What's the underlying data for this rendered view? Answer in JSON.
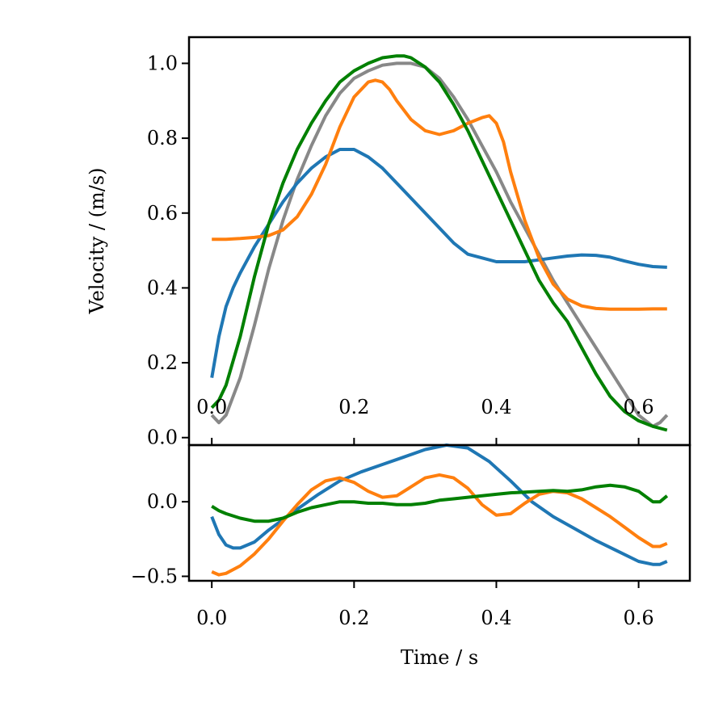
{
  "chart_data": [
    {
      "type": "line",
      "panel": "top",
      "title": "",
      "xlabel": "",
      "ylabel": "Velocity / (m/s)",
      "xlim": [
        -0.032,
        0.672
      ],
      "ylim": [
        -0.02,
        1.07
      ],
      "xticks": [
        0.0,
        0.2,
        0.4,
        0.6
      ],
      "xtick_labels": [
        "0.0",
        "0.2",
        "0.4",
        "0.6"
      ],
      "yticks": [
        0.0,
        0.2,
        0.4,
        0.6,
        0.8,
        1.0
      ],
      "ytick_labels": [
        "0.0",
        "0.2",
        "0.4",
        "0.6",
        "0.8",
        "1.0"
      ],
      "series": [
        {
          "name": "gray",
          "color": "#888888",
          "x": [
            0.0,
            0.01,
            0.02,
            0.04,
            0.06,
            0.08,
            0.1,
            0.12,
            0.14,
            0.16,
            0.18,
            0.2,
            0.22,
            0.24,
            0.26,
            0.28,
            0.3,
            0.32,
            0.34,
            0.36,
            0.38,
            0.4,
            0.42,
            0.44,
            0.46,
            0.48,
            0.5,
            0.52,
            0.54,
            0.56,
            0.58,
            0.6,
            0.62,
            0.63,
            0.64
          ],
          "y": [
            0.06,
            0.04,
            0.06,
            0.16,
            0.3,
            0.45,
            0.58,
            0.69,
            0.78,
            0.86,
            0.92,
            0.96,
            0.98,
            0.995,
            1.0,
            1.0,
            0.99,
            0.96,
            0.91,
            0.85,
            0.78,
            0.71,
            0.63,
            0.56,
            0.49,
            0.42,
            0.36,
            0.3,
            0.24,
            0.18,
            0.12,
            0.06,
            0.03,
            0.04,
            0.06
          ]
        },
        {
          "name": "blue",
          "color": "#1f77b4",
          "x": [
            0.0,
            0.01,
            0.02,
            0.03,
            0.04,
            0.06,
            0.08,
            0.1,
            0.12,
            0.14,
            0.16,
            0.18,
            0.2,
            0.22,
            0.24,
            0.26,
            0.28,
            0.3,
            0.32,
            0.34,
            0.36,
            0.38,
            0.4,
            0.42,
            0.44,
            0.46,
            0.48,
            0.5,
            0.52,
            0.54,
            0.56,
            0.58,
            0.6,
            0.62,
            0.64
          ],
          "y": [
            0.16,
            0.27,
            0.35,
            0.4,
            0.44,
            0.51,
            0.57,
            0.63,
            0.68,
            0.72,
            0.75,
            0.77,
            0.77,
            0.75,
            0.72,
            0.68,
            0.64,
            0.6,
            0.56,
            0.52,
            0.49,
            0.48,
            0.47,
            0.47,
            0.47,
            0.475,
            0.48,
            0.485,
            0.488,
            0.487,
            0.482,
            0.472,
            0.463,
            0.457,
            0.455
          ]
        },
        {
          "name": "orange",
          "color": "#ff7f0e",
          "x": [
            0.0,
            0.02,
            0.04,
            0.06,
            0.08,
            0.1,
            0.12,
            0.14,
            0.16,
            0.18,
            0.2,
            0.22,
            0.23,
            0.24,
            0.25,
            0.26,
            0.28,
            0.3,
            0.32,
            0.34,
            0.36,
            0.38,
            0.39,
            0.4,
            0.41,
            0.42,
            0.44,
            0.46,
            0.48,
            0.5,
            0.52,
            0.54,
            0.56,
            0.58,
            0.6,
            0.62,
            0.64
          ],
          "y": [
            0.53,
            0.53,
            0.532,
            0.535,
            0.54,
            0.555,
            0.59,
            0.65,
            0.73,
            0.83,
            0.91,
            0.95,
            0.955,
            0.95,
            0.93,
            0.9,
            0.85,
            0.82,
            0.81,
            0.82,
            0.84,
            0.855,
            0.86,
            0.84,
            0.79,
            0.71,
            0.58,
            0.48,
            0.41,
            0.37,
            0.352,
            0.345,
            0.343,
            0.343,
            0.343,
            0.344,
            0.344
          ]
        },
        {
          "name": "green",
          "color": "#008000",
          "x": [
            0.0,
            0.01,
            0.02,
            0.04,
            0.06,
            0.08,
            0.1,
            0.12,
            0.14,
            0.16,
            0.18,
            0.2,
            0.22,
            0.24,
            0.26,
            0.27,
            0.28,
            0.3,
            0.32,
            0.34,
            0.36,
            0.38,
            0.4,
            0.42,
            0.44,
            0.46,
            0.48,
            0.5,
            0.52,
            0.54,
            0.56,
            0.58,
            0.6,
            0.62,
            0.64
          ],
          "y": [
            0.08,
            0.1,
            0.14,
            0.27,
            0.43,
            0.57,
            0.68,
            0.77,
            0.84,
            0.9,
            0.95,
            0.98,
            1.0,
            1.015,
            1.02,
            1.02,
            1.015,
            0.99,
            0.95,
            0.89,
            0.82,
            0.74,
            0.66,
            0.58,
            0.5,
            0.42,
            0.36,
            0.31,
            0.24,
            0.17,
            0.11,
            0.07,
            0.045,
            0.03,
            0.02
          ]
        }
      ]
    },
    {
      "type": "line",
      "panel": "bottom",
      "title": "",
      "xlabel": "Time / s",
      "ylabel": "",
      "xlim": [
        -0.032,
        0.672
      ],
      "ylim": [
        -0.53,
        0.38
      ],
      "xticks": [
        0.0,
        0.2,
        0.4,
        0.6
      ],
      "xtick_labels": [
        "0.0",
        "0.2",
        "0.4",
        "0.6"
      ],
      "yticks": [
        -0.5,
        0.0
      ],
      "ytick_labels": [
        "−0.5",
        "0.0"
      ],
      "series": [
        {
          "name": "blue",
          "color": "#1f77b4",
          "x": [
            0.0,
            0.01,
            0.02,
            0.03,
            0.04,
            0.06,
            0.08,
            0.1,
            0.12,
            0.15,
            0.18,
            0.21,
            0.24,
            0.27,
            0.3,
            0.33,
            0.36,
            0.39,
            0.42,
            0.45,
            0.48,
            0.51,
            0.54,
            0.57,
            0.6,
            0.62,
            0.63,
            0.64
          ],
          "y": [
            -0.1,
            -0.22,
            -0.29,
            -0.31,
            -0.31,
            -0.27,
            -0.19,
            -0.12,
            -0.05,
            0.05,
            0.14,
            0.2,
            0.25,
            0.3,
            0.35,
            0.38,
            0.36,
            0.27,
            0.14,
            0.0,
            -0.1,
            -0.18,
            -0.26,
            -0.33,
            -0.4,
            -0.42,
            -0.42,
            -0.4
          ]
        },
        {
          "name": "orange",
          "color": "#ff7f0e",
          "x": [
            0.0,
            0.01,
            0.02,
            0.04,
            0.06,
            0.08,
            0.1,
            0.12,
            0.14,
            0.16,
            0.18,
            0.2,
            0.22,
            0.24,
            0.26,
            0.28,
            0.3,
            0.32,
            0.34,
            0.36,
            0.38,
            0.4,
            0.42,
            0.44,
            0.46,
            0.48,
            0.5,
            0.52,
            0.54,
            0.56,
            0.58,
            0.6,
            0.62,
            0.63,
            0.64
          ],
          "y": [
            -0.47,
            -0.49,
            -0.48,
            -0.43,
            -0.35,
            -0.25,
            -0.13,
            -0.02,
            0.08,
            0.14,
            0.16,
            0.13,
            0.07,
            0.03,
            0.04,
            0.1,
            0.16,
            0.18,
            0.16,
            0.09,
            -0.02,
            -0.09,
            -0.08,
            -0.01,
            0.05,
            0.07,
            0.06,
            0.02,
            -0.04,
            -0.1,
            -0.17,
            -0.24,
            -0.3,
            -0.3,
            -0.28
          ]
        },
        {
          "name": "green",
          "color": "#008000",
          "x": [
            0.0,
            0.01,
            0.02,
            0.04,
            0.06,
            0.08,
            0.1,
            0.12,
            0.14,
            0.16,
            0.18,
            0.2,
            0.22,
            0.24,
            0.26,
            0.28,
            0.3,
            0.32,
            0.34,
            0.36,
            0.38,
            0.4,
            0.42,
            0.44,
            0.46,
            0.48,
            0.5,
            0.52,
            0.54,
            0.56,
            0.58,
            0.6,
            0.62,
            0.63,
            0.64
          ],
          "y": [
            -0.03,
            -0.06,
            -0.08,
            -0.11,
            -0.13,
            -0.13,
            -0.11,
            -0.07,
            -0.04,
            -0.02,
            0.0,
            0.0,
            -0.01,
            -0.01,
            -0.02,
            -0.02,
            -0.01,
            0.01,
            0.02,
            0.03,
            0.04,
            0.05,
            0.06,
            0.065,
            0.07,
            0.075,
            0.07,
            0.08,
            0.1,
            0.11,
            0.1,
            0.07,
            0.0,
            0.0,
            0.04
          ]
        }
      ]
    }
  ]
}
